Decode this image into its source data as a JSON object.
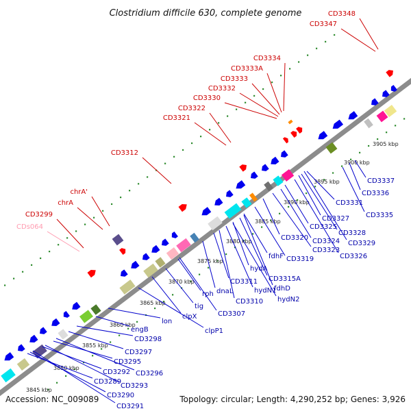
{
  "title": "Clostridium difficile 630, complete genome",
  "footer": {
    "accession": "Accession: NC_009089",
    "info": "Topology: circular; Length: 4,290,252 bp; Genes: 3,926"
  },
  "colors": {
    "forward_strand": "#ff0000",
    "reverse_strand": "#0000ee",
    "trna": "#ff9999",
    "backbone": "#8c8c8c",
    "dots": "#2e8b2e"
  },
  "ticks": [
    "3845 kbp",
    "3850 kbp",
    "3855 kbp",
    "3860 kbp",
    "3865 kbp",
    "3870 kbp",
    "3875 kbp",
    "3880 kbp",
    "3885 kbp",
    "3890 kbp",
    "3895 kbp",
    "3900 kbp",
    "3905 kbp"
  ],
  "top_labels": [
    "CDs064",
    "CD3299",
    "chrA",
    "chrA'",
    "CD3312",
    "CD3321",
    "CD3322",
    "CD3330",
    "CD3332",
    "CD3333",
    "CD3333A",
    "CD3334",
    "CD3347",
    "CD3348"
  ],
  "bottom_labels": [
    "CD3291",
    "CD3290",
    "CD3289",
    "CD3292",
    "CD3293",
    "CD3295",
    "CD3296",
    "CD3297",
    "CD3298",
    "engB",
    "lon",
    "clpP1",
    "clpX",
    "tig",
    "CD3307",
    "rph",
    "dnaL",
    "CD3310",
    "CD3311",
    "hydN1",
    "hydN2",
    "hydA",
    "CD3315A",
    "fdhD",
    "fdhF",
    "CD3319",
    "CD3320",
    "CD3323",
    "CD3324",
    "CD3325",
    "CD3326",
    "CD3327",
    "CD3328",
    "CD3329",
    "CD3331",
    "CD3335",
    "CD3336",
    "CD3337"
  ]
}
